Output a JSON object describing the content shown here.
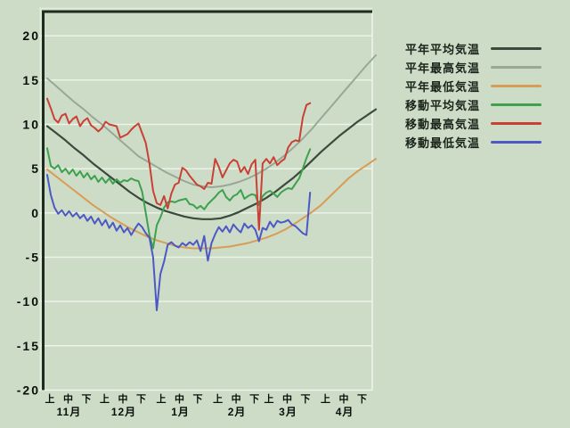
{
  "window": {
    "background": "#cddcc7"
  },
  "chart_data": {
    "type": "line",
    "title": "",
    "description": "Daily temperature chart November-April: climatological normals (full period) and observed moving values (ending late March)",
    "colors": {
      "background": "#cddcc7",
      "gridline": "#eef4ea",
      "frame_dark": "#1f2b1f",
      "frame_highlight": "#e2ecdc",
      "axis_text": "#0a0f0a"
    },
    "y_axis": {
      "min": -20,
      "max": 20,
      "step": 5,
      "ticks": [
        20,
        15,
        10,
        5,
        0,
        -5,
        -10,
        -15,
        -20
      ],
      "tick_labels": [
        "20",
        "15",
        "10",
        "5",
        "0",
        "-5",
        "-10",
        "-15",
        "-20"
      ]
    },
    "x_axis": {
      "total_days": 181,
      "jun_labels": [
        "上",
        "中",
        "下",
        "上",
        "中",
        "下",
        "上",
        "中",
        "下",
        "上",
        "中",
        "下",
        "上",
        "中",
        "下",
        "上",
        "中",
        "下"
      ],
      "jun_start_days": [
        0,
        10,
        20,
        30,
        40,
        50,
        61,
        71,
        81,
        92,
        102,
        112,
        120,
        130,
        140,
        151,
        161,
        171
      ],
      "months": [
        {
          "label": "11月",
          "center_day": 10
        },
        {
          "label": "12月",
          "center_day": 40
        },
        {
          "label": "1月",
          "center_day": 71
        },
        {
          "label": "2月",
          "center_day": 102
        },
        {
          "label": "3月",
          "center_day": 130
        },
        {
          "label": "4月",
          "center_day": 161
        }
      ]
    },
    "series": [
      {
        "key": "normal-mean",
        "name": "平年平均気温",
        "color": "#3a4a3c",
        "width": 2.2,
        "days_per_point": 5,
        "values": [
          9.8,
          9.0,
          8.2,
          7.3,
          6.5,
          5.6,
          4.8,
          4.0,
          3.2,
          2.4,
          1.7,
          1.1,
          0.6,
          0.2,
          -0.1,
          -0.4,
          -0.6,
          -0.7,
          -0.7,
          -0.6,
          -0.3,
          0.1,
          0.6,
          1.1,
          1.7,
          2.4,
          3.2,
          4.0,
          4.9,
          5.9,
          6.9,
          7.8,
          8.7,
          9.5,
          10.3,
          11.0,
          11.7
        ]
      },
      {
        "key": "normal-max",
        "name": "平年最高気温",
        "color": "#98a896",
        "width": 2,
        "days_per_point": 5,
        "values": [
          15.2,
          14.3,
          13.4,
          12.5,
          11.7,
          10.8,
          10.0,
          9.1,
          8.2,
          7.3,
          6.4,
          5.8,
          5.2,
          4.6,
          4.1,
          3.6,
          3.2,
          3.0,
          2.9,
          3.0,
          3.2,
          3.5,
          3.9,
          4.4,
          5.0,
          5.7,
          6.5,
          7.4,
          8.4,
          9.5,
          10.7,
          11.9,
          13.1,
          14.3,
          15.5,
          16.7,
          17.8
        ]
      },
      {
        "key": "normal-min",
        "name": "平年最低気温",
        "color": "#d99c55",
        "width": 2,
        "days_per_point": 5,
        "values": [
          4.9,
          4.1,
          3.3,
          2.5,
          1.7,
          0.9,
          0.2,
          -0.5,
          -1.1,
          -1.7,
          -2.2,
          -2.7,
          -3.1,
          -3.4,
          -3.7,
          -3.9,
          -4.0,
          -4.0,
          -4.0,
          -3.9,
          -3.8,
          -3.6,
          -3.4,
          -3.1,
          -2.8,
          -2.4,
          -1.9,
          -1.3,
          -0.6,
          0.1,
          0.9,
          1.9,
          2.9,
          3.9,
          4.7,
          5.4,
          6.1
        ]
      },
      {
        "key": "moving-mean",
        "name": "移動平均気温",
        "color": "#3da14e",
        "width": 2,
        "days_per_point": 2,
        "values": [
          7.3,
          5.3,
          5.0,
          5.4,
          4.6,
          5.0,
          4.4,
          4.9,
          4.2,
          4.7,
          4.0,
          4.5,
          3.8,
          4.2,
          3.5,
          4.0,
          3.4,
          3.9,
          3.3,
          3.8,
          3.4,
          3.7,
          3.6,
          3.9,
          3.7,
          3.6,
          2.4,
          0.0,
          -2.5,
          -4.0,
          -1.4,
          -0.5,
          0.6,
          1.2,
          1.3,
          1.2,
          1.4,
          1.5,
          1.6,
          1.0,
          0.9,
          0.5,
          0.8,
          0.4,
          1.0,
          1.4,
          1.8,
          2.3,
          2.6,
          1.8,
          1.4,
          1.9,
          2.1,
          2.6,
          1.6,
          1.9,
          2.1,
          2.0,
          0.9,
          1.9,
          2.3,
          2.5,
          2.2,
          1.8,
          2.3,
          2.6,
          2.8,
          2.7,
          3.3,
          3.9,
          5.0,
          6.2,
          7.2
        ]
      },
      {
        "key": "moving-max",
        "name": "移動最高気温",
        "color": "#c94134",
        "width": 2,
        "days_per_point": 2,
        "values": [
          12.9,
          11.8,
          10.6,
          10.2,
          11.0,
          11.2,
          10.1,
          10.6,
          10.9,
          9.8,
          10.4,
          10.7,
          9.9,
          9.6,
          9.2,
          9.6,
          10.3,
          10.0,
          9.9,
          9.8,
          8.5,
          8.7,
          8.9,
          9.4,
          9.8,
          10.1,
          9.0,
          7.9,
          5.6,
          2.5,
          1.1,
          0.9,
          1.9,
          0.5,
          2.2,
          3.2,
          3.4,
          5.1,
          4.8,
          4.2,
          3.7,
          3.2,
          3.0,
          2.7,
          3.4,
          3.3,
          6.1,
          5.2,
          4.0,
          4.8,
          5.6,
          6.0,
          5.8,
          4.6,
          5.2,
          4.4,
          5.5,
          6.0,
          -1.9,
          5.6,
          6.1,
          5.6,
          6.3,
          5.4,
          5.8,
          6.1,
          7.4,
          8.0,
          8.2,
          8.1,
          10.8,
          12.2,
          12.4
        ]
      },
      {
        "key": "moving-min",
        "name": "移動最低気温",
        "color": "#4d58c4",
        "width": 2,
        "days_per_point": 2,
        "values": [
          4.3,
          2.0,
          0.6,
          -0.1,
          0.3,
          -0.3,
          0.2,
          -0.4,
          0.0,
          -0.6,
          -0.2,
          -0.9,
          -0.4,
          -1.2,
          -0.6,
          -1.4,
          -0.8,
          -1.7,
          -1.1,
          -2.0,
          -1.4,
          -2.2,
          -1.7,
          -2.5,
          -1.8,
          -1.2,
          -1.6,
          -2.3,
          -2.8,
          -5.0,
          -11.0,
          -6.9,
          -5.5,
          -3.6,
          -3.3,
          -3.7,
          -3.9,
          -3.4,
          -3.7,
          -3.3,
          -3.6,
          -3.1,
          -4.3,
          -2.6,
          -5.4,
          -3.4,
          -2.4,
          -1.6,
          -2.1,
          -1.5,
          -2.2,
          -1.3,
          -1.8,
          -2.2,
          -1.2,
          -1.7,
          -1.4,
          -1.9,
          -3.2,
          -1.7,
          -1.9,
          -1.0,
          -1.6,
          -0.9,
          -1.1,
          -1.0,
          -0.8,
          -1.3,
          -1.5,
          -1.9,
          -2.3,
          -2.5,
          2.3
        ]
      }
    ],
    "draw_order": [
      1,
      0,
      2,
      3,
      4,
      5
    ],
    "legend_position": "right"
  },
  "legend": {
    "items": [
      "平年平均気温",
      "平年最高気温",
      "平年最低気温",
      "移動平均気温",
      "移動最高気温",
      "移動最低気温"
    ]
  }
}
